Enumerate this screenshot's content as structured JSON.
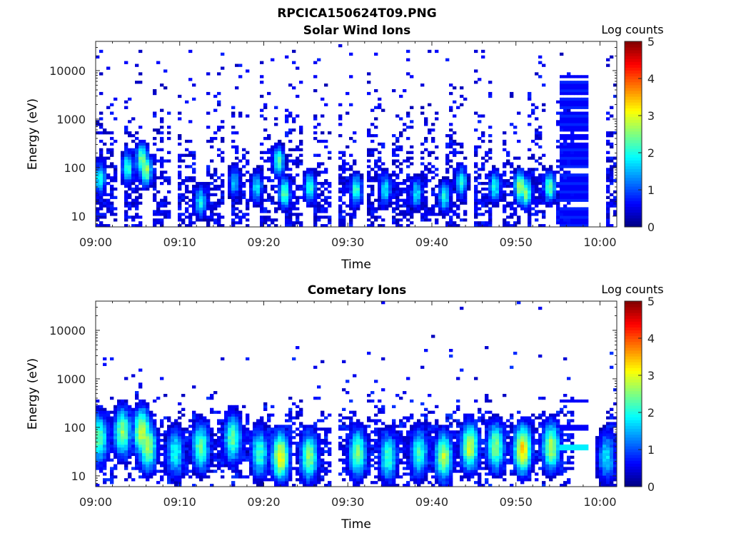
{
  "figure": {
    "title": "RPCICA150624T09.PNG"
  },
  "chart_data": [
    {
      "type": "heatmap",
      "title": "Solar Wind Ions",
      "xlabel": "Time",
      "ylabel": "Energy (eV)",
      "x_ticks": [
        "09:00",
        "09:10",
        "09:20",
        "09:30",
        "09:40",
        "09:50",
        "10:00"
      ],
      "y_ticks": [
        "10",
        "100",
        "1000",
        "10000"
      ],
      "y_scale": "log",
      "ylim": [
        6,
        40000
      ],
      "xlim_minutes": [
        0,
        62
      ],
      "colorbar": {
        "label": "Log counts",
        "ticks": [
          "0",
          "1",
          "2",
          "3",
          "4",
          "5"
        ],
        "range": [
          0,
          5
        ],
        "colormap": "jet"
      },
      "sweep_start_minutes": [
        0.2,
        3.4,
        6.6,
        9.8,
        13.0,
        16.2,
        19.4,
        22.6,
        25.8,
        29.0,
        32.2,
        35.4,
        38.6,
        41.8,
        45.0,
        48.2,
        51.4,
        54.6,
        60.8
      ],
      "low_energy_peaks": [
        {
          "t": 0.5,
          "e": 60,
          "c": 2.0
        },
        {
          "t": 3.8,
          "e": 100,
          "c": 2.2
        },
        {
          "t": 5.5,
          "e": 150,
          "c": 2.6
        },
        {
          "t": 6.0,
          "e": 90,
          "c": 2.8
        },
        {
          "t": 12.5,
          "e": 20,
          "c": 2.0
        },
        {
          "t": 16.5,
          "e": 50,
          "c": 1.6
        },
        {
          "t": 19.2,
          "e": 40,
          "c": 1.8
        },
        {
          "t": 21.8,
          "e": 140,
          "c": 2.2
        },
        {
          "t": 22.5,
          "e": 30,
          "c": 2.4
        },
        {
          "t": 25.5,
          "e": 40,
          "c": 2.2
        },
        {
          "t": 31.0,
          "e": 35,
          "c": 2.2
        },
        {
          "t": 34.5,
          "e": 35,
          "c": 1.8
        },
        {
          "t": 38.2,
          "e": 30,
          "c": 1.8
        },
        {
          "t": 41.5,
          "e": 25,
          "c": 2.0
        },
        {
          "t": 43.5,
          "e": 50,
          "c": 2.0
        },
        {
          "t": 47.5,
          "e": 40,
          "c": 2.0
        },
        {
          "t": 50.5,
          "e": 40,
          "c": 2.8
        },
        {
          "t": 51.2,
          "e": 30,
          "c": 2.5
        },
        {
          "t": 54.0,
          "e": 40,
          "c": 2.4
        }
      ],
      "uniform_block": {
        "t0": 55.2,
        "t1": 58.8,
        "e_max": 8000,
        "c": 0.6
      }
    },
    {
      "type": "heatmap",
      "title": "Cometary Ions",
      "xlabel": "Time",
      "ylabel": "Energy (eV)",
      "x_ticks": [
        "09:00",
        "09:10",
        "09:20",
        "09:30",
        "09:40",
        "09:50",
        "10:00"
      ],
      "y_ticks": [
        "10",
        "100",
        "1000",
        "10000"
      ],
      "y_scale": "log",
      "ylim": [
        6,
        40000
      ],
      "xlim_minutes": [
        0,
        62
      ],
      "colorbar": {
        "label": "Log counts",
        "ticks": [
          "0",
          "1",
          "2",
          "3",
          "4",
          "5"
        ],
        "range": [
          0,
          5
        ],
        "colormap": "jet"
      },
      "sweep_start_minutes": [
        0.2,
        3.4,
        6.6,
        9.8,
        13.0,
        16.2,
        19.4,
        22.6,
        25.8,
        29.0,
        32.2,
        35.4,
        38.6,
        41.8,
        45.0,
        48.2,
        51.4,
        54.6,
        60.8
      ],
      "main_peaks": [
        {
          "t": 0.4,
          "e": 60,
          "c": 2.4
        },
        {
          "t": 3.2,
          "e": 80,
          "c": 2.6
        },
        {
          "t": 5.5,
          "e": 80,
          "c": 3.0
        },
        {
          "t": 6.2,
          "e": 40,
          "c": 2.8
        },
        {
          "t": 9.5,
          "e": 30,
          "c": 2.0
        },
        {
          "t": 12.5,
          "e": 40,
          "c": 2.4
        },
        {
          "t": 16.3,
          "e": 60,
          "c": 2.4
        },
        {
          "t": 19.5,
          "e": 30,
          "c": 2.2
        },
        {
          "t": 22.0,
          "e": 25,
          "c": 3.2
        },
        {
          "t": 25.4,
          "e": 25,
          "c": 2.6
        },
        {
          "t": 31.2,
          "e": 30,
          "c": 2.5
        },
        {
          "t": 34.8,
          "e": 25,
          "c": 2.2
        },
        {
          "t": 38.5,
          "e": 30,
          "c": 2.2
        },
        {
          "t": 41.4,
          "e": 25,
          "c": 2.8
        },
        {
          "t": 44.5,
          "e": 40,
          "c": 3.0
        },
        {
          "t": 47.6,
          "e": 40,
          "c": 2.6
        },
        {
          "t": 50.8,
          "e": 35,
          "c": 3.4
        },
        {
          "t": 54.2,
          "e": 40,
          "c": 2.8
        },
        {
          "t": 60.8,
          "e": 25,
          "c": 1.8
        }
      ],
      "horizontal_bands": [
        {
          "t0": 55.2,
          "t1": 58.8,
          "e": 40,
          "c": 1.8
        },
        {
          "t0": 55.2,
          "t1": 58.8,
          "e": 95,
          "c": 0.6
        },
        {
          "t0": 55.2,
          "t1": 58.8,
          "e": 350,
          "c": 0.6
        }
      ]
    }
  ]
}
